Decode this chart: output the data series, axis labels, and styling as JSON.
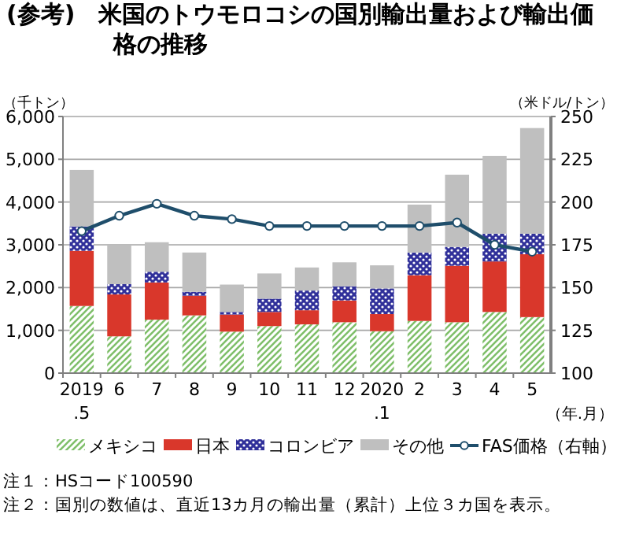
{
  "chart_data": {
    "type": "bar",
    "stacked": true,
    "title": "(参考)　米国のトウモロコシの国別輸出量および輸出価格の推移",
    "ylabel": "（千トン）",
    "y2label": "（米ドル/トン）",
    "xlabel": "（年.月）",
    "categories": [
      "2019\n.5",
      "6",
      "7",
      "8",
      "9",
      "10",
      "11",
      "12",
      "2020\n.1",
      "2",
      "3",
      "4",
      "5"
    ],
    "series": [
      {
        "name": "メキシコ",
        "color": "#7fbf6a",
        "values": [
          1570,
          860,
          1250,
          1350,
          970,
          1100,
          1140,
          1190,
          980,
          1220,
          1190,
          1430,
          1310
        ]
      },
      {
        "name": "日本",
        "color": "#d9372b",
        "values": [
          1290,
          980,
          870,
          460,
          400,
          330,
          330,
          510,
          400,
          1070,
          1320,
          1180,
          1470
        ]
      },
      {
        "name": "コロンビア",
        "color": "#30309a",
        "values": [
          570,
          240,
          250,
          90,
          60,
          310,
          460,
          330,
          600,
          530,
          440,
          650,
          480
        ]
      },
      {
        "name": "その他",
        "color": "#bfbfbf",
        "values": [
          1320,
          910,
          690,
          920,
          640,
          590,
          540,
          560,
          540,
          1120,
          1690,
          1820,
          2470
        ]
      },
      {
        "name": "FAS価格（右軸）",
        "type": "line",
        "axis": "y2",
        "color": "#1f4e6b",
        "marker": "circle",
        "values": [
          183,
          192,
          199,
          192,
          190,
          186,
          186,
          186,
          186,
          186,
          188,
          175,
          171
        ]
      }
    ],
    "ylim": [
      0,
      6000
    ],
    "yticks": [
      {
        "value": 0,
        "label": "0"
      },
      {
        "value": 1000,
        "label": "1,000"
      },
      {
        "value": 2000,
        "label": "2,000"
      },
      {
        "value": 3000,
        "label": "3,000"
      },
      {
        "value": 4000,
        "label": "4,000"
      },
      {
        "value": 5000,
        "label": "5,000"
      },
      {
        "value": 6000,
        "label": "6,000"
      }
    ],
    "y2lim": [
      100,
      250
    ],
    "y2ticks": [
      100,
      125,
      150,
      175,
      200,
      225,
      250
    ],
    "grid": "y",
    "legend": "bottom",
    "annotations": [
      "注１：HSコード100590",
      "注２：国別の数値は、直近13カ月の輸出量（累計）上位３カ国を表示。"
    ]
  }
}
